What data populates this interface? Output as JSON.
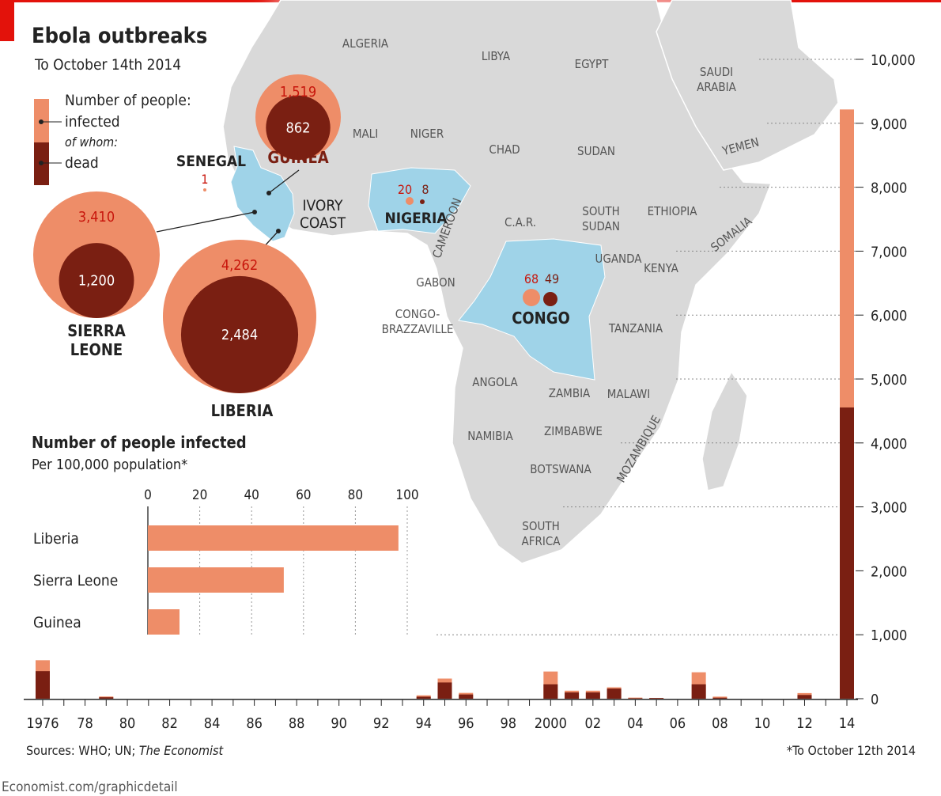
{
  "header": {
    "title": "Ebola outbreaks",
    "subtitle": "To October 14th 2014"
  },
  "legend": {
    "heading": "Number of people:",
    "infected": "infected",
    "of_whom": "of whom:",
    "dead": "dead"
  },
  "colors": {
    "infected": "#ee8d68",
    "dead": "#7a1f12",
    "highlight": "#9fd3e8",
    "land": "#d9d9d9",
    "accent": "#e3120b"
  },
  "map": {
    "countries": [
      "ALGERIA",
      "LIBYA",
      "EGYPT",
      "SAUDI ARABIA",
      "MALI",
      "NIGER",
      "CHAD",
      "SUDAN",
      "YEMEN",
      "IVORY COAST",
      "C.A.R.",
      "SOUTH SUDAN",
      "ETHIOPIA",
      "SOMALIA",
      "CAMEROON",
      "UGANDA",
      "KENYA",
      "GABON",
      "CONGO-BRAZZAVILLE",
      "TANZANIA",
      "ANGOLA",
      "ZAMBIA",
      "MALAWI",
      "MOZAMBIQUE",
      "ZIMBABWE",
      "NAMIBIA",
      "BOTSWANA",
      "SOUTH AFRICA"
    ],
    "outbreaks": [
      {
        "country": "GUINEA",
        "infected": "1,519",
        "dead": "862"
      },
      {
        "country": "SIERRA LEONE",
        "infected": "3,410",
        "dead": "1,200"
      },
      {
        "country": "LIBERIA",
        "infected": "4,262",
        "dead": "2,484"
      },
      {
        "country": "SENEGAL",
        "infected": "1",
        "dead": ""
      },
      {
        "country": "NIGERIA",
        "infected": "20",
        "dead": "8"
      },
      {
        "country": "CONGO",
        "infected": "68",
        "dead": "49"
      }
    ]
  },
  "chart_data": [
    {
      "type": "bar",
      "orientation": "horizontal",
      "title": "Number of people infected",
      "subtitle": "Per 100,000 population*",
      "categories": [
        "Liberia",
        "Sierra Leone",
        "Guinea"
      ],
      "values": [
        96.6,
        52.4,
        12.2
      ],
      "xlim": [
        0,
        100
      ],
      "ticks": [
        "0",
        "20",
        "40",
        "60",
        "80",
        "100"
      ],
      "grid": true
    },
    {
      "type": "bar",
      "stacked": "overlay",
      "ylim": [
        0,
        10000
      ],
      "yticks": [
        "0",
        "1,000",
        "2,000",
        "3,000",
        "4,000",
        "5,000",
        "6,000",
        "7,000",
        "8,000",
        "9,000",
        "10,000"
      ],
      "xticks": [
        "1976",
        "78",
        "80",
        "82",
        "84",
        "86",
        "88",
        "90",
        "92",
        "94",
        "96",
        "98",
        "2000",
        "02",
        "04",
        "06",
        "08",
        "10",
        "12",
        "14"
      ],
      "series": [
        {
          "name": "infected",
          "points": [
            [
              1976,
              602
            ],
            [
              1979,
              34
            ],
            [
              1994,
              52
            ],
            [
              1995,
              315
            ],
            [
              1996,
              91
            ],
            [
              2000,
              425
            ],
            [
              2001,
              125
            ],
            [
              2002,
              125
            ],
            [
              2003,
              178
            ],
            [
              2004,
              17
            ],
            [
              2005,
              12
            ],
            [
              2007,
              413
            ],
            [
              2008,
              32
            ],
            [
              2012,
              88
            ],
            [
              2014,
              9216
            ]
          ]
        },
        {
          "name": "dead",
          "points": [
            [
              1976,
              431
            ],
            [
              1979,
              22
            ],
            [
              1994,
              31
            ],
            [
              1995,
              254
            ],
            [
              1996,
              66
            ],
            [
              2000,
              224
            ],
            [
              2001,
              97
            ],
            [
              2002,
              97
            ],
            [
              2003,
              157
            ],
            [
              2004,
              7
            ],
            [
              2005,
              10
            ],
            [
              2007,
              224
            ],
            [
              2008,
              15
            ],
            [
              2012,
              58
            ],
            [
              2014,
              4555
            ]
          ]
        }
      ]
    }
  ],
  "footer": {
    "sources_prefix": "Sources: WHO; UN; ",
    "sources_italic": "The Economist",
    "footnote": "*To October 12th 2014",
    "url": "Economist.com/graphicdetail"
  }
}
